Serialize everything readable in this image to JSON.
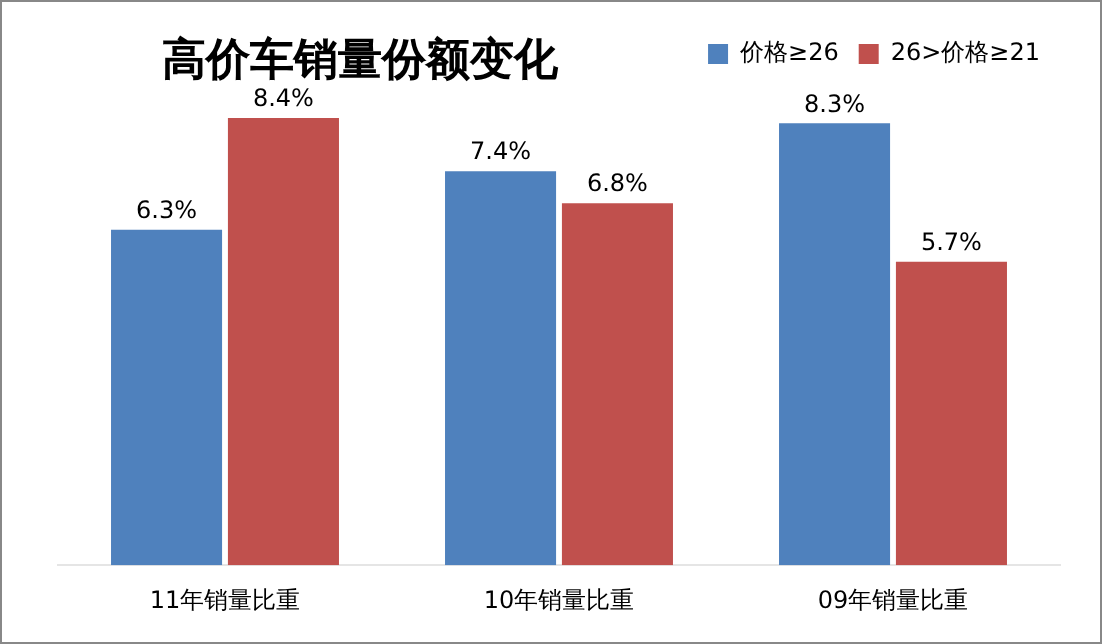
{
  "chart_data": {
    "type": "bar",
    "title": "高价车销量份额变化",
    "categories": [
      "11年销量比重",
      "10年销量比重",
      "09年销量比重"
    ],
    "legend": "top right",
    "grid": false,
    "relative": false,
    "series": [
      {
        "name": "价格≥26",
        "color": "#4f81bd",
        "values": [
          6.3,
          7.4,
          8.3
        ],
        "value_labels": [
          "6.3%",
          "7.4%",
          "8.3%"
        ]
      },
      {
        "name": "26>价格≥21",
        "color": "#c0504d",
        "values": [
          8.4,
          6.8,
          5.7
        ],
        "value_labels": [
          "8.4%",
          "6.8%",
          "5.7%"
        ]
      }
    ]
  }
}
